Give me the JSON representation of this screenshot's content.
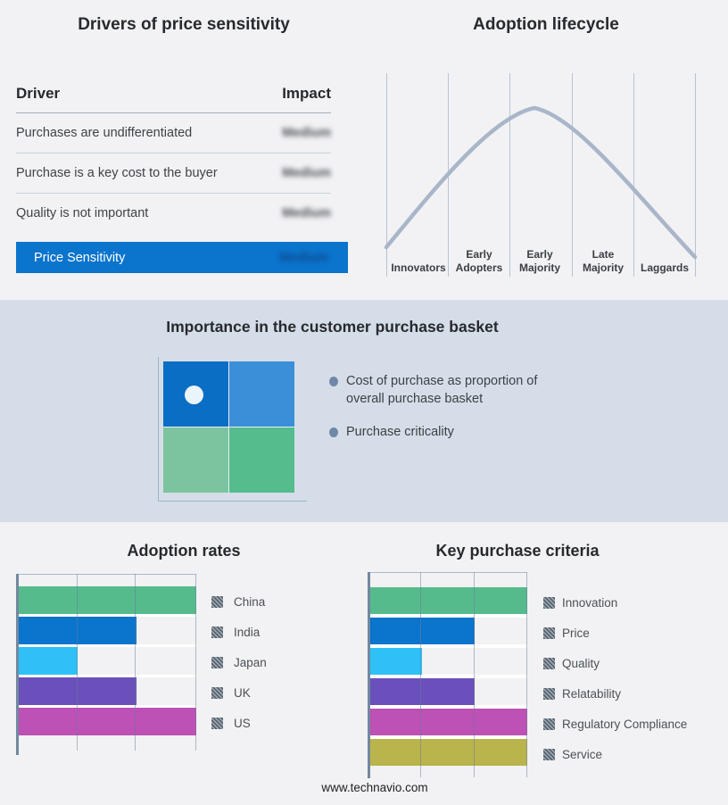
{
  "page": {
    "footer_url": "www.technavio.com",
    "background": "#f2f2f4",
    "band_background": "#d5dee8"
  },
  "price_table": {
    "title": "Drivers of price sensitivity",
    "columns": {
      "driver": "Driver",
      "impact": "Impact"
    },
    "rows": [
      {
        "driver": "Purchases are undifferentiated",
        "impact": "Medium"
      },
      {
        "driver": "Purchase is a key cost to the buyer",
        "impact": "Medium"
      },
      {
        "driver": "Quality is not important",
        "impact": "Medium"
      }
    ],
    "summary_row": {
      "label": "Price Sensitivity",
      "impact": "Medium",
      "color": "#0b74cc"
    },
    "impact_values_blurred": true
  },
  "purchase_basket": {
    "title": "Importance in the customer purchase basket",
    "bullets": [
      "Cost of purchase as proportion of overall purchase basket",
      "Purchase criticality"
    ],
    "quadrant": {
      "top_left": "#0b6ec5",
      "top_right": "#3b8ed8",
      "bottom_left": "#7cc4a0",
      "bottom_right": "#54bc8d",
      "dot": "#eaf4fb"
    }
  },
  "chart_data": [
    {
      "type": "line",
      "title": "Adoption lifecycle",
      "categories": [
        "Innovators",
        "Early Adopters",
        "Early Majority",
        "Late Majority",
        "Laggards"
      ],
      "curve": "bell curve rising from Innovators, peaking over Early Majority, falling through Laggards",
      "curve_color": "#a9b6c9",
      "grid": "vertical stage separators only",
      "y_axis": "none",
      "data_labels": "none"
    },
    {
      "type": "bar",
      "orientation": "horizontal",
      "title": "Adoption rates",
      "categories": [
        "China",
        "India",
        "Japan",
        "UK",
        "US"
      ],
      "values": [
        3,
        2,
        1,
        2,
        3
      ],
      "xlim": [
        0,
        3
      ],
      "axis_labels": "none (bars span relative thirds of the axis)",
      "colors": [
        "#55bb8d",
        "#0b74cc",
        "#2fc0f7",
        "#6a50bb",
        "#bd51b5"
      ],
      "legend_position": "right"
    },
    {
      "type": "bar",
      "orientation": "horizontal",
      "title": "Key purchase criteria",
      "categories": [
        "Innovation",
        "Price",
        "Quality",
        "Relatability",
        "Regulatory Compliance",
        "Service"
      ],
      "values": [
        3,
        2,
        1,
        2,
        3,
        3
      ],
      "xlim": [
        0,
        3
      ],
      "axis_labels": "none (bars span relative thirds of the axis)",
      "colors": [
        "#55bb8d",
        "#0b74cc",
        "#2fc0f7",
        "#6a50bb",
        "#bd51b5",
        "#b9b44c"
      ],
      "legend_position": "right"
    }
  ]
}
